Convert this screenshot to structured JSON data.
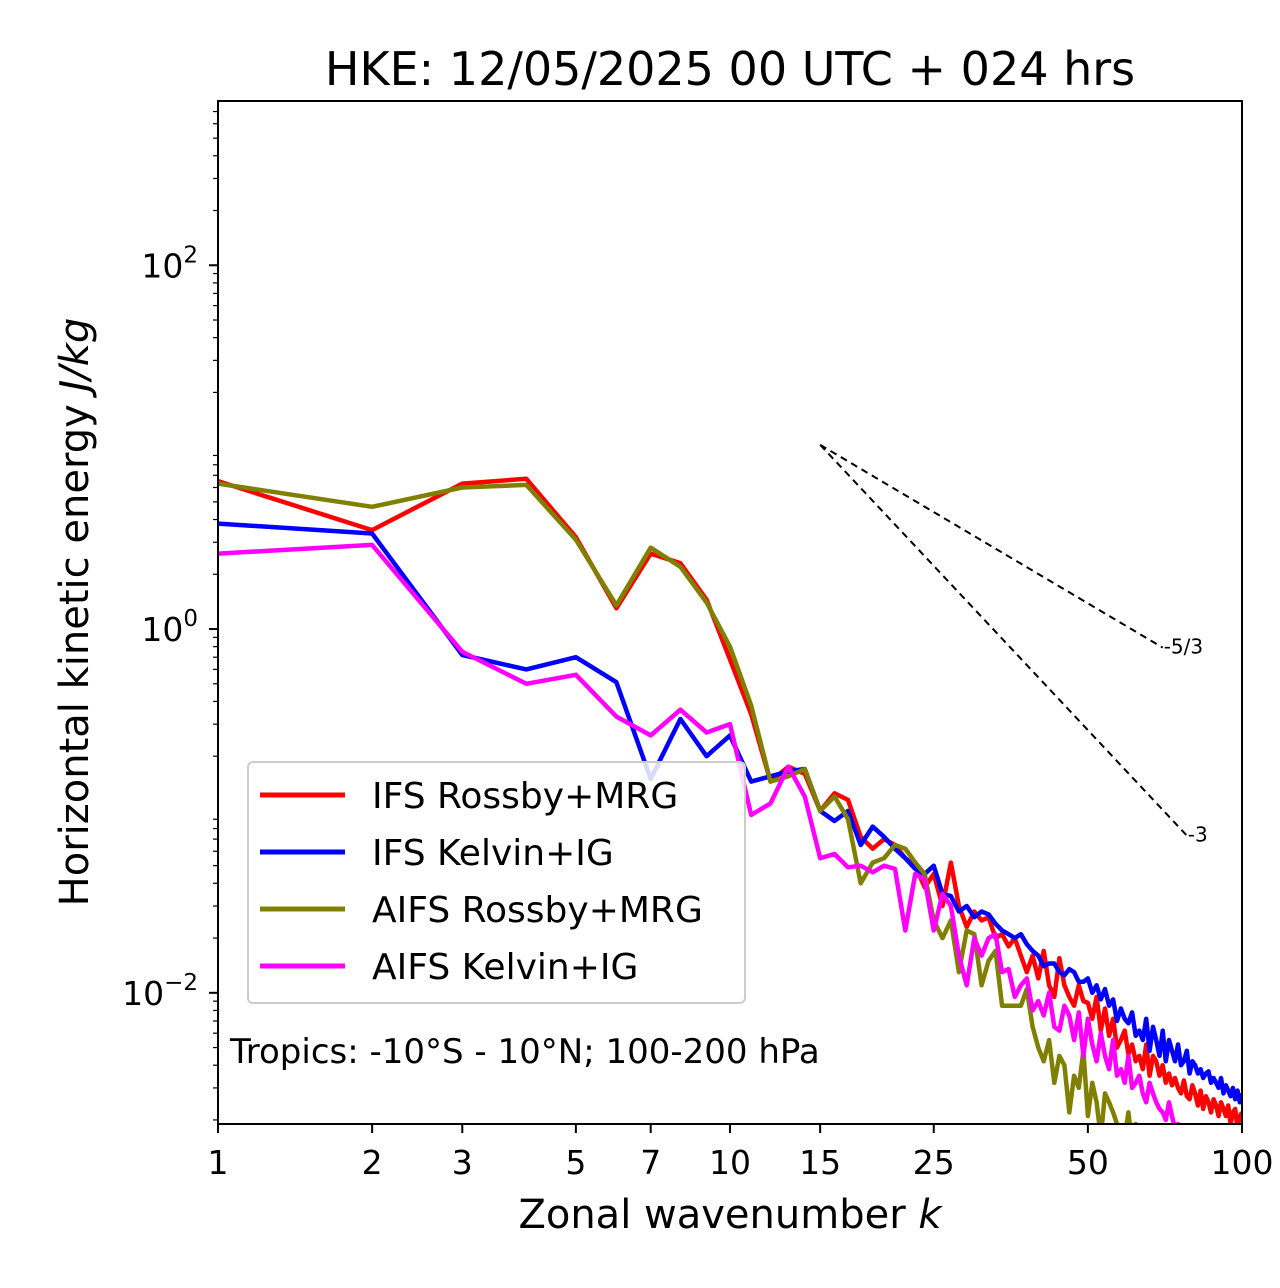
{
  "chart_data": {
    "type": "line",
    "title": "HKE: 12/05/2025 00 UTC + 024 hrs",
    "xlabel": "Zonal wavenumber",
    "xlabel_var": "k",
    "ylabel": "Horizontal kinetic energy",
    "ylabel_units": "J/kg",
    "x_scale": "log",
    "y_scale": "log",
    "xlim": [
      1,
      100
    ],
    "ylim": [
      0.0019,
      800
    ],
    "x_ticks": [
      1,
      2,
      3,
      5,
      7,
      10,
      15,
      25,
      50,
      100
    ],
    "x_tick_labels": [
      "1",
      "2",
      "3",
      "5",
      "7",
      "10",
      "15",
      "25",
      "50",
      "100"
    ],
    "y_ticks": [
      100,
      1,
      0.01
    ],
    "y_tick_bases": [
      "10",
      "10",
      "10"
    ],
    "y_tick_exponents": [
      "2",
      "0",
      "−2"
    ],
    "grid": false,
    "legend_position": "lower-left",
    "annotation": "Tropics: -10°S - 10°N; 100-200 hPa",
    "reference_lines": [
      {
        "label": "-5/3",
        "slope": -1.6667,
        "x_start": 15,
        "x_end": 70,
        "y_start": 10.3
      },
      {
        "label": "-3",
        "slope": -3,
        "x_start": 15,
        "x_end": 78,
        "y_start": 10.3
      }
    ],
    "series": [
      {
        "name": "IFS Rossby+MRG",
        "color": "#ff0000",
        "x": [
          1,
          2,
          3,
          4,
          5,
          6,
          7,
          8,
          9,
          10,
          11,
          12,
          13,
          14,
          15,
          16,
          17,
          18,
          19,
          20,
          21,
          22,
          23,
          24,
          25,
          26,
          27,
          28,
          29,
          30,
          31,
          32,
          33,
          34,
          35,
          36,
          37,
          38,
          39,
          40,
          41,
          42,
          43,
          44,
          45,
          46,
          47,
          48,
          49,
          50,
          51,
          52,
          53,
          54,
          55,
          56,
          57,
          58,
          59,
          60,
          61,
          62,
          63,
          64,
          65,
          66,
          67,
          68,
          69,
          70,
          71,
          72,
          73,
          74,
          75,
          76,
          77,
          78,
          79,
          80,
          81,
          82,
          83,
          84,
          85,
          86,
          87,
          88,
          89,
          90,
          91,
          92,
          93,
          94,
          95,
          96,
          97,
          98,
          99,
          100
        ],
        "y": [
          6.5,
          3.5,
          6.3,
          6.7,
          3.2,
          1.3,
          2.6,
          2.3,
          1.45,
          0.68,
          0.34,
          0.145,
          0.175,
          0.16,
          0.1,
          0.125,
          0.115,
          0.072,
          0.062,
          0.07,
          0.065,
          0.055,
          0.05,
          0.038,
          0.045,
          0.03,
          0.052,
          0.03,
          0.023,
          0.028,
          0.025,
          0.026,
          0.02,
          0.021,
          0.018,
          0.02,
          0.016,
          0.013,
          0.016,
          0.012,
          0.017,
          0.011,
          0.0095,
          0.0155,
          0.011,
          0.0095,
          0.0085,
          0.011,
          0.009,
          0.0088,
          0.0072,
          0.0095,
          0.0062,
          0.0082,
          0.0058,
          0.0072,
          0.005,
          0.0055,
          0.0062,
          0.0046,
          0.0052,
          0.0042,
          0.0045,
          0.0038,
          0.0052,
          0.0035,
          0.0045,
          0.0042,
          0.0035,
          0.004,
          0.0032,
          0.0036,
          0.0031,
          0.0034,
          0.003,
          0.0028,
          0.0033,
          0.0027,
          0.0026,
          0.0031,
          0.0028,
          0.0024,
          0.0029,
          0.0023,
          0.0027,
          0.0025,
          0.0022,
          0.0026,
          0.0024,
          0.0021,
          0.0025,
          0.0023,
          0.0021,
          0.0024,
          0.0019,
          0.0022,
          0.0023,
          0.0018,
          0.0021,
          0.0022
        ]
      },
      {
        "name": "IFS Kelvin+IG",
        "color": "#0000ff",
        "x": [
          1,
          2,
          3,
          4,
          5,
          6,
          7,
          8,
          9,
          10,
          11,
          12,
          13,
          14,
          15,
          16,
          17,
          18,
          19,
          20,
          21,
          22,
          23,
          24,
          25,
          26,
          27,
          28,
          29,
          30,
          31,
          32,
          33,
          34,
          35,
          36,
          37,
          38,
          39,
          40,
          41,
          42,
          43,
          44,
          45,
          46,
          47,
          48,
          49,
          50,
          51,
          52,
          53,
          54,
          55,
          56,
          57,
          58,
          59,
          60,
          61,
          62,
          63,
          64,
          65,
          66,
          67,
          68,
          69,
          70,
          71,
          72,
          73,
          74,
          75,
          76,
          77,
          78,
          79,
          80,
          81,
          82,
          83,
          84,
          85,
          86,
          87,
          88,
          89,
          90,
          91,
          92,
          93,
          94,
          95,
          96,
          97,
          98,
          99,
          100
        ],
        "y": [
          3.8,
          3.35,
          0.72,
          0.6,
          0.7,
          0.51,
          0.15,
          0.32,
          0.2,
          0.26,
          0.145,
          0.155,
          0.165,
          0.17,
          0.1,
          0.088,
          0.1,
          0.065,
          0.082,
          0.072,
          0.062,
          0.055,
          0.048,
          0.045,
          0.05,
          0.035,
          0.034,
          0.028,
          0.03,
          0.026,
          0.028,
          0.027,
          0.024,
          0.022,
          0.021,
          0.02,
          0.021,
          0.0185,
          0.017,
          0.016,
          0.014,
          0.0145,
          0.0145,
          0.013,
          0.0125,
          0.0135,
          0.013,
          0.0115,
          0.0115,
          0.012,
          0.01,
          0.011,
          0.0092,
          0.0105,
          0.0085,
          0.0092,
          0.007,
          0.0082,
          0.0072,
          0.0068,
          0.0078,
          0.0058,
          0.0062,
          0.0055,
          0.0072,
          0.0048,
          0.0065,
          0.0055,
          0.0045,
          0.0062,
          0.0042,
          0.0055,
          0.0048,
          0.0042,
          0.0052,
          0.004,
          0.0042,
          0.0048,
          0.0036,
          0.0042,
          0.004,
          0.0036,
          0.0038,
          0.0034,
          0.0036,
          0.0037,
          0.0032,
          0.0034,
          0.0032,
          0.003,
          0.0034,
          0.0028,
          0.0031,
          0.0029,
          0.0027,
          0.003,
          0.0026,
          0.0029,
          0.0025,
          0.0028
        ]
      },
      {
        "name": "AIFS Rossby+MRG",
        "color": "#808000",
        "x": [
          1,
          2,
          3,
          4,
          5,
          6,
          7,
          8,
          9,
          10,
          11,
          12,
          13,
          14,
          15,
          16,
          17,
          18,
          19,
          20,
          21,
          22,
          23,
          24,
          25,
          26,
          27,
          28,
          29,
          30,
          31,
          32,
          33,
          34,
          35,
          36,
          37,
          38,
          39,
          40,
          41,
          42,
          43,
          44,
          45,
          46,
          47,
          48,
          49,
          50,
          51,
          52,
          53,
          54,
          55,
          56,
          57,
          58,
          59,
          60,
          61,
          62,
          63,
          64,
          65,
          66,
          67,
          68,
          69,
          70,
          71,
          72,
          73
        ],
        "y": [
          6.3,
          4.7,
          6,
          6.2,
          3.1,
          1.35,
          2.8,
          2.2,
          1.4,
          0.8,
          0.38,
          0.145,
          0.155,
          0.17,
          0.1,
          0.12,
          0.09,
          0.04,
          0.052,
          0.055,
          0.065,
          0.062,
          0.052,
          0.045,
          0.025,
          0.02,
          0.025,
          0.013,
          0.022,
          0.021,
          0.011,
          0.015,
          0.017,
          0.0085,
          0.0085,
          0.0085,
          0.0085,
          0.0105,
          0.0065,
          0.005,
          0.0042,
          0.0055,
          0.0032,
          0.0045,
          0.004,
          0.0022,
          0.0035,
          0.003,
          0.0048,
          0.0021,
          0.0032,
          0.0025,
          0.0016,
          0.0028,
          0.0025,
          0.0022,
          0.0019,
          0.0018,
          0.0016,
          0.0022,
          0.0015,
          0.0019,
          0.0014,
          0.0017,
          0.0012,
          0.0016,
          0.0013,
          0.0011,
          0.0014,
          0.0012,
          0.0011,
          0.0013,
          0.001
        ]
      },
      {
        "name": "AIFS Kelvin+IG",
        "color": "#ff00ff",
        "x": [
          1,
          2,
          3,
          4,
          5,
          6,
          7,
          8,
          9,
          10,
          11,
          12,
          13,
          14,
          15,
          16,
          17,
          18,
          19,
          20,
          21,
          22,
          23,
          24,
          25,
          26,
          27,
          28,
          29,
          30,
          31,
          32,
          33,
          34,
          35,
          36,
          37,
          38,
          39,
          40,
          41,
          42,
          43,
          44,
          45,
          46,
          47,
          48,
          49,
          50,
          51,
          52,
          53,
          54,
          55,
          56,
          57,
          58,
          59,
          60,
          61,
          62,
          63,
          64,
          65,
          66,
          67,
          68,
          69,
          70,
          71,
          72,
          73,
          74,
          75,
          76,
          77,
          78
        ],
        "y": [
          2.6,
          2.9,
          0.75,
          0.5,
          0.56,
          0.33,
          0.26,
          0.36,
          0.27,
          0.3,
          0.095,
          0.11,
          0.175,
          0.12,
          0.055,
          0.058,
          0.049,
          0.05,
          0.046,
          0.05,
          0.048,
          0.022,
          0.045,
          0.042,
          0.022,
          0.035,
          0.03,
          0.016,
          0.011,
          0.02,
          0.016,
          0.02,
          0.021,
          0.013,
          0.0135,
          0.0095,
          0.011,
          0.012,
          0.008,
          0.009,
          0.0075,
          0.01,
          0.0065,
          0.0062,
          0.0085,
          0.0075,
          0.0055,
          0.0078,
          0.0045,
          0.0072,
          0.0052,
          0.0042,
          0.006,
          0.0045,
          0.0038,
          0.0055,
          0.0035,
          0.0038,
          0.0032,
          0.0045,
          0.003,
          0.0032,
          0.0035,
          0.0028,
          0.0025,
          0.0032,
          0.0028,
          0.0025,
          0.0023,
          0.0022,
          0.002,
          0.0025,
          0.0021,
          0.0018,
          0.0019,
          0.0016,
          0.0018,
          0.0015
        ]
      }
    ]
  }
}
